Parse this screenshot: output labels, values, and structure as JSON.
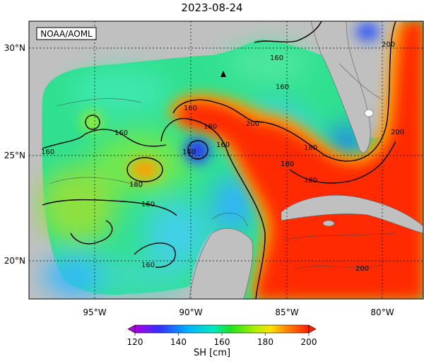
{
  "title": "2023-08-24",
  "watermark": "NOAA/AOML",
  "lon_ticks": [
    "95°W",
    "90°W",
    "85°W",
    "80°W"
  ],
  "lat_ticks": [
    "30°N",
    "25°N",
    "20°N"
  ],
  "colorbar": {
    "ticks": [
      "120",
      "140",
      "160",
      "180",
      "200"
    ],
    "units": "SH [cm]",
    "colors": [
      "#b000e0",
      "#3030ff",
      "#00b0ff",
      "#00e8c0",
      "#20e020",
      "#a0f000",
      "#ffe000",
      "#ff8000",
      "#ff2000"
    ]
  },
  "contour_labels": [
    "160",
    "180",
    "200",
    "180",
    "160",
    "160",
    "140",
    "160",
    "180",
    "160",
    "160",
    "180",
    "160",
    "200",
    "200",
    "160",
    "180",
    "200"
  ],
  "colors": {
    "land": "#c0c0c0",
    "water_base": "#30e090"
  }
}
